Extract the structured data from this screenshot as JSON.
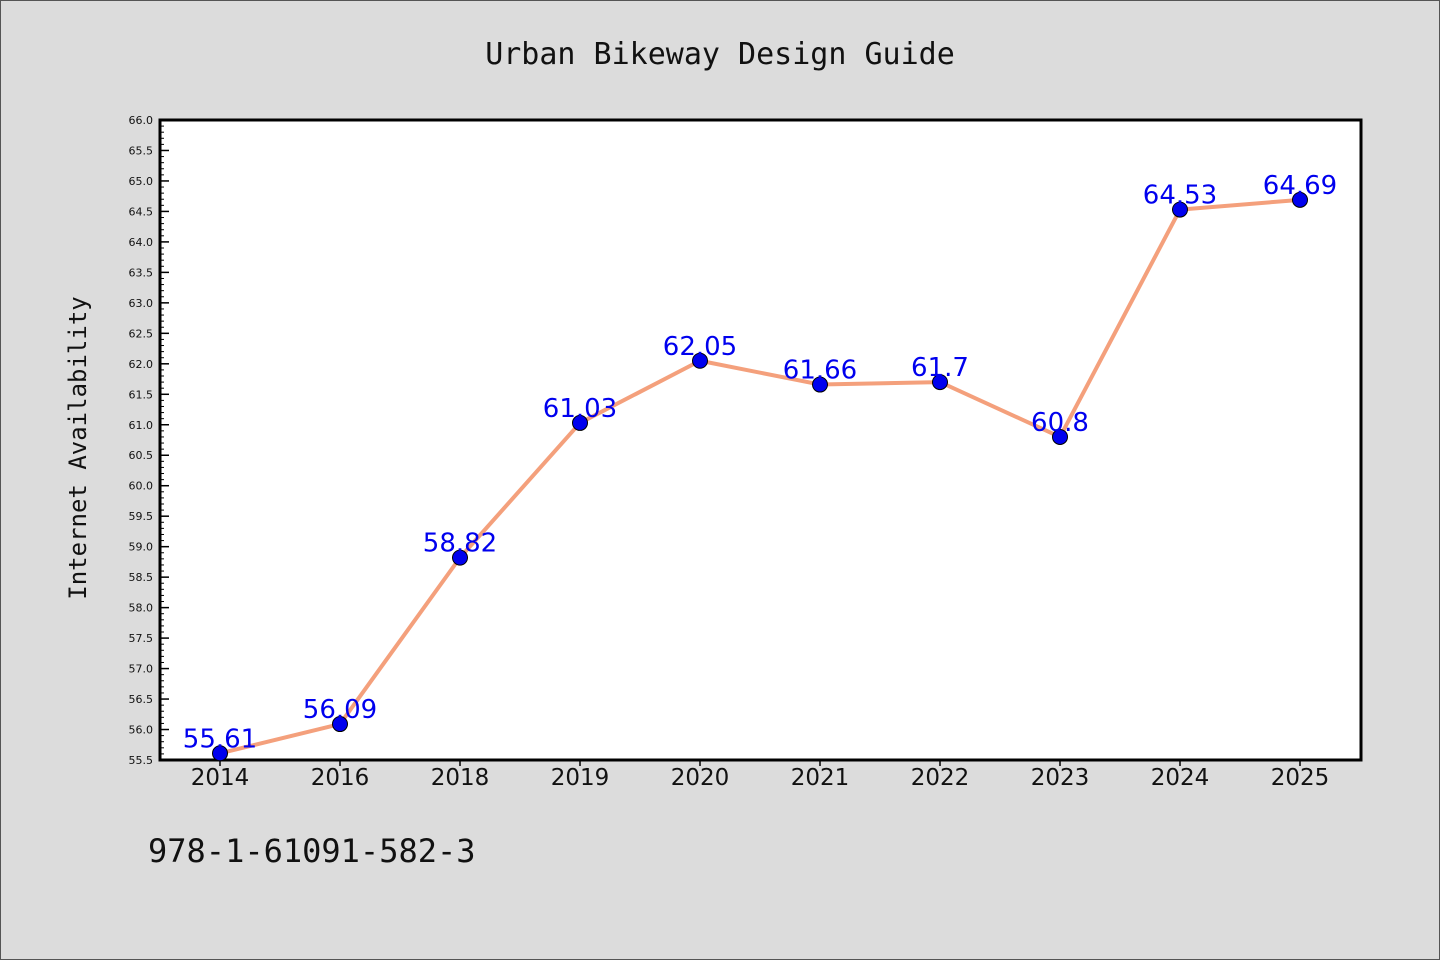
{
  "footer_code": "978-1-61091-582-3",
  "chart_data": {
    "type": "line",
    "title": "Urban Bikeway Design Guide",
    "xlabel": "",
    "ylabel": "Internet Availability",
    "categories": [
      "2014",
      "2016",
      "2018",
      "2019",
      "2020",
      "2021",
      "2022",
      "2023",
      "2024",
      "2025"
    ],
    "series": [
      {
        "values": [
          55.61,
          56.09,
          58.82,
          61.03,
          62.05,
          61.66,
          61.7,
          60.8,
          64.53,
          64.69
        ],
        "labels": [
          "55.61",
          "56.09",
          "58.82",
          "61.03",
          "62.05",
          "61.66",
          "61.7",
          "60.8",
          "64.53",
          "64.69"
        ]
      }
    ],
    "ylim": [
      55.5,
      66.0
    ],
    "yticks": [
      "55.5",
      "56.0",
      "56.5",
      "57.0",
      "57.5",
      "58.0",
      "58.5",
      "59.0",
      "59.5",
      "60.0",
      "60.5",
      "61.0",
      "61.5",
      "62.0",
      "62.5",
      "63.0",
      "63.5",
      "64.0",
      "64.5",
      "65.0",
      "65.5",
      "66.0"
    ],
    "grid": false,
    "colors": {
      "line": "#f4a07c",
      "marker": "#0000ee",
      "label": "#0000ee",
      "background": "#dcdcdc",
      "plot_background": "#ffffff"
    }
  }
}
